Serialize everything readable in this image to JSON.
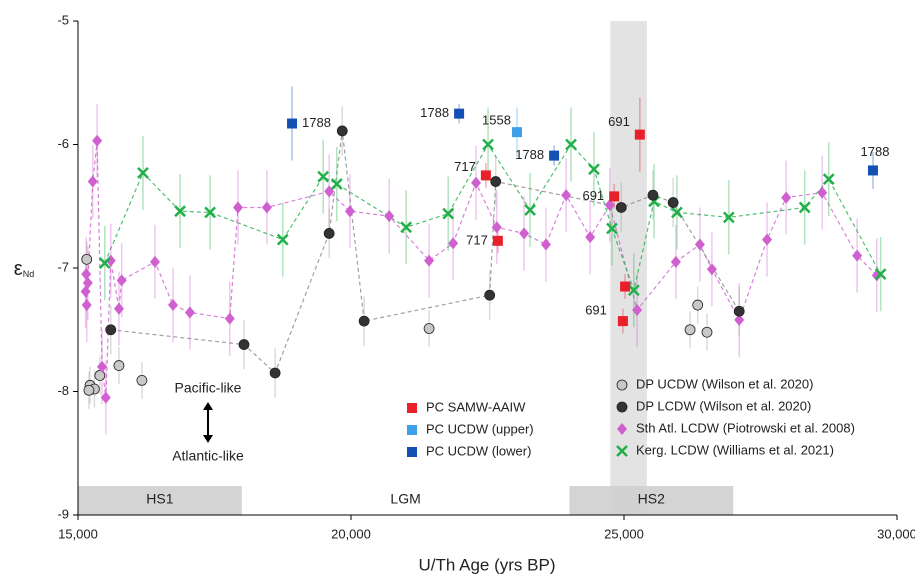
{
  "chart_data": {
    "type": "scatter",
    "x_label": "U/Th Age (yrs BP)",
    "y_label": "ε",
    "y_label_sub": "Nd",
    "xlim": [
      15000,
      30000
    ],
    "ylim": [
      -9,
      -5
    ],
    "xticks": [
      {
        "value": 15000,
        "label": "15,000"
      },
      {
        "value": 20000,
        "label": "20,000"
      },
      {
        "value": 25000,
        "label": "25,000"
      },
      {
        "value": 30000,
        "label": "30,000"
      }
    ],
    "yticks": [
      -5,
      -6,
      -7,
      -8,
      -9
    ],
    "highlight": [
      24750,
      25420
    ],
    "periods": [
      {
        "label": "HS1",
        "start": 15000,
        "end": 18000,
        "shaded": true
      },
      {
        "label": "LGM",
        "start": 18000,
        "end": 24000,
        "shaded": false
      },
      {
        "label": "HS2",
        "start": 24000,
        "end": 27000,
        "shaded": true
      }
    ],
    "annotations": [
      "Pacific-like",
      "Atlantic-like"
    ],
    "series": [
      {
        "name": "PC SAMW-AAIW",
        "color": "#e8202a",
        "marker": "square",
        "line": false,
        "x": [
          22470,
          22690,
          24820,
          25290,
          25020,
          24980
        ],
        "values": [
          -6.25,
          -6.78,
          -6.42,
          -5.92,
          -7.15,
          -7.43
        ],
        "errors": [
          0.1,
          0.1,
          0.1,
          0.3,
          0.1,
          0.1
        ],
        "point_labels": [
          "717",
          "717",
          "691",
          "691",
          null,
          "691"
        ]
      },
      {
        "name": "PC UCDW (upper)",
        "color": "#3fa0e8",
        "marker": "square",
        "line": false,
        "x": [
          23040
        ],
        "values": [
          -5.9
        ],
        "errors": [
          0.2
        ],
        "point_labels": [
          "1558"
        ]
      },
      {
        "name": "PC UCDW (lower)",
        "color": "#1450b4",
        "marker": "square",
        "line": false,
        "x": [
          18920,
          21980,
          23720,
          29560
        ],
        "values": [
          -5.83,
          -5.75,
          -6.09,
          -6.21
        ],
        "errors": [
          0.3,
          0.08,
          0.08,
          0.15
        ],
        "point_labels": [
          "1788",
          "1788",
          "1788",
          "1788"
        ]
      },
      {
        "name": "DP UCDW (Wilson et al. 2020)",
        "color": "#c8c8c8",
        "marker": "circle",
        "line": false,
        "x": [
          15160,
          15220,
          15300,
          15400,
          15750,
          16170,
          21430,
          26210,
          26350,
          26520,
          15200
        ],
        "values": [
          -6.93,
          -7.95,
          -7.98,
          -7.87,
          -7.79,
          -7.91,
          -7.49,
          -7.5,
          -7.3,
          -7.52,
          -7.99
        ],
        "errors": [
          0.15,
          0.15,
          0.15,
          0.15,
          0.15,
          0.15,
          0.15,
          0.15,
          0.15,
          0.15,
          0.15
        ]
      },
      {
        "name": "DP LCDW (Wilson et al. 2020)",
        "color": "#333333",
        "marker": "circle",
        "line": true,
        "x": [
          15600,
          18040,
          18610,
          19600,
          19840,
          20240,
          22540,
          22650,
          24950,
          25530,
          25900,
          27110
        ],
        "values": [
          -7.5,
          -7.62,
          -7.85,
          -6.72,
          -5.89,
          -7.43,
          -7.22,
          -6.3,
          -6.51,
          -6.41,
          -6.47,
          -7.35
        ],
        "errors": [
          0.2,
          0.2,
          0.2,
          0.2,
          0.2,
          0.2,
          0.2,
          0.2,
          0.2,
          0.2,
          0.2,
          0.2
        ]
      },
      {
        "name": "Sth Atl. LCDW (Piotrowski et al. 2008)",
        "color": "#d060d0",
        "marker": "diamond",
        "line": true,
        "x": [
          15140,
          15150,
          15160,
          15180,
          15270,
          15350,
          15440,
          15510,
          15600,
          15750,
          15800,
          16410,
          16740,
          17050,
          17780,
          17930,
          18460,
          19600,
          19980,
          20700,
          21430,
          21870,
          22290,
          22670,
          23170,
          23570,
          23940,
          24380,
          24740,
          25240,
          25950,
          26390,
          26610,
          27110,
          27620,
          27970,
          28630,
          29270,
          29630
        ],
        "values": [
          -7.19,
          -7.05,
          -7.3,
          -7.12,
          -6.3,
          -5.97,
          -7.8,
          -8.05,
          -6.94,
          -7.33,
          -7.1,
          -6.95,
          -7.3,
          -7.36,
          -7.41,
          -6.51,
          -6.51,
          -6.38,
          -6.54,
          -6.58,
          -6.94,
          -6.8,
          -6.31,
          -6.67,
          -6.72,
          -6.81,
          -6.41,
          -6.75,
          -6.49,
          -7.34,
          -6.95,
          -6.81,
          -7.01,
          -7.42,
          -6.77,
          -6.43,
          -6.39,
          -6.9,
          -7.06
        ],
        "errors": [
          0.3,
          0.3,
          0.3,
          0.3,
          0.3,
          0.3,
          0.3,
          0.3,
          0.3,
          0.3,
          0.3,
          0.3,
          0.3,
          0.3,
          0.3,
          0.3,
          0.3,
          0.3,
          0.3,
          0.3,
          0.3,
          0.3,
          0.3,
          0.3,
          0.3,
          0.3,
          0.3,
          0.3,
          0.3,
          0.3,
          0.3,
          0.3,
          0.3,
          0.3,
          0.3,
          0.3,
          0.3,
          0.3,
          0.3
        ]
      },
      {
        "name": "Kerg. LCDW (Williams et al. 2021)",
        "color": "#22b04a",
        "marker": "x",
        "line": true,
        "x": [
          15490,
          16190,
          16870,
          17420,
          18750,
          19490,
          19740,
          21010,
          21780,
          22510,
          23280,
          24030,
          24450,
          24780,
          25180,
          25550,
          25970,
          26920,
          28310,
          28750,
          29700
        ],
        "values": [
          -6.96,
          -6.23,
          -6.54,
          -6.55,
          -6.77,
          -6.26,
          -6.32,
          -6.67,
          -6.56,
          -6.0,
          -6.53,
          -6.0,
          -6.2,
          -6.68,
          -7.18,
          -6.46,
          -6.55,
          -6.59,
          -6.51,
          -6.28,
          -7.05
        ],
        "errors": [
          0.3,
          0.3,
          0.3,
          0.3,
          0.3,
          0.3,
          0.3,
          0.3,
          0.3,
          0.3,
          0.3,
          0.3,
          0.3,
          0.3,
          0.3,
          0.3,
          0.3,
          0.3,
          0.3,
          0.3,
          0.3
        ]
      }
    ]
  }
}
